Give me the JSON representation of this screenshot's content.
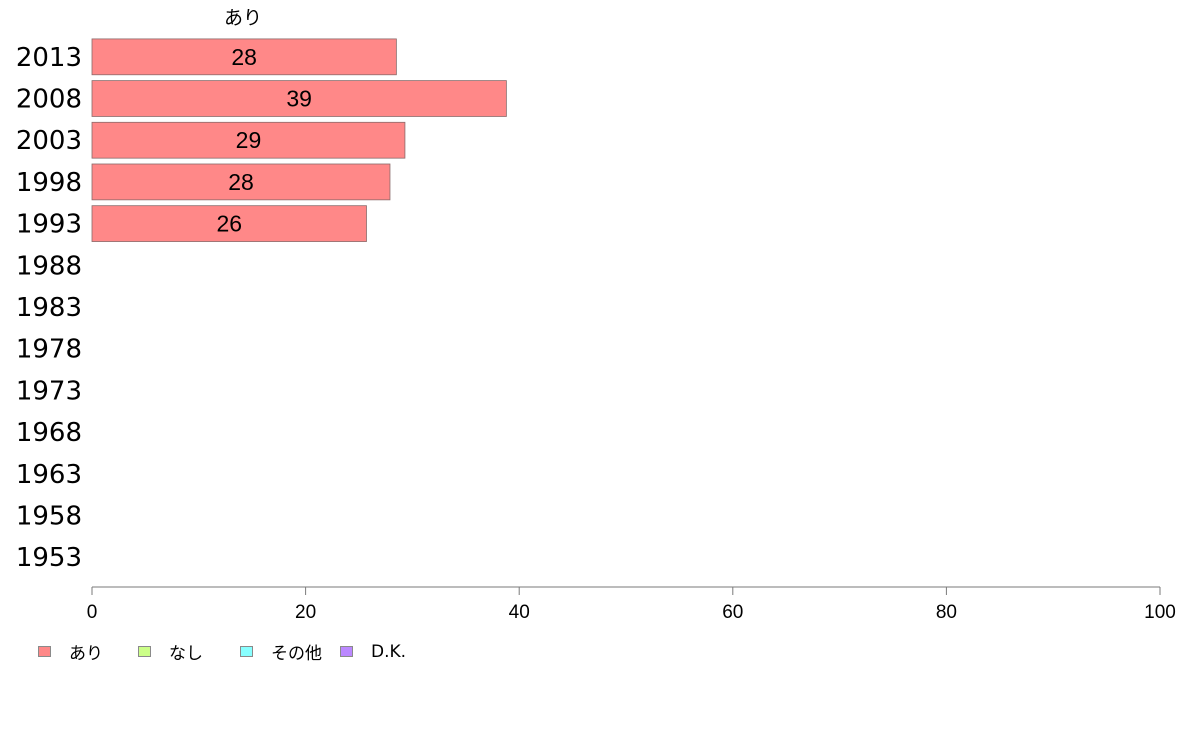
{
  "chart_data": {
    "type": "bar",
    "orientation": "horizontal",
    "categories": [
      "2013",
      "2008",
      "2003",
      "1998",
      "1993",
      "1988",
      "1983",
      "1978",
      "1973",
      "1968",
      "1963",
      "1958",
      "1953"
    ],
    "series": [
      {
        "name": "あり",
        "color": "#ff8888",
        "values": [
          28.5,
          38.8,
          29.3,
          27.9,
          25.7,
          null,
          null,
          null,
          null,
          null,
          null,
          null,
          null
        ],
        "labels": [
          "28",
          "39",
          "29",
          "28",
          "26",
          "",
          "",
          "",
          "",
          "",
          "",
          "",
          ""
        ]
      },
      {
        "name": "なし",
        "color": "#ccff88",
        "values": [
          null,
          null,
          null,
          null,
          null,
          null,
          null,
          null,
          null,
          null,
          null,
          null,
          null
        ]
      },
      {
        "name": "その他",
        "color": "#88ffff",
        "values": [
          null,
          null,
          null,
          null,
          null,
          null,
          null,
          null,
          null,
          null,
          null,
          null,
          null
        ]
      },
      {
        "name": "D.K.",
        "color": "#bb88ff",
        "values": [
          null,
          null,
          null,
          null,
          null,
          null,
          null,
          null,
          null,
          null,
          null,
          null,
          null
        ]
      }
    ],
    "column_header": "あり",
    "xlim": [
      0,
      100
    ],
    "xticks": [
      "0",
      "20",
      "40",
      "60",
      "80",
      "100"
    ],
    "legend_position": "bottom-left",
    "grid": false
  },
  "legend": [
    {
      "label": "あり",
      "color": "#ff8888"
    },
    {
      "label": "なし",
      "color": "#ccff88"
    },
    {
      "label": "その他",
      "color": "#88ffff"
    },
    {
      "label": "D.K.",
      "color": "#bb88ff"
    }
  ]
}
